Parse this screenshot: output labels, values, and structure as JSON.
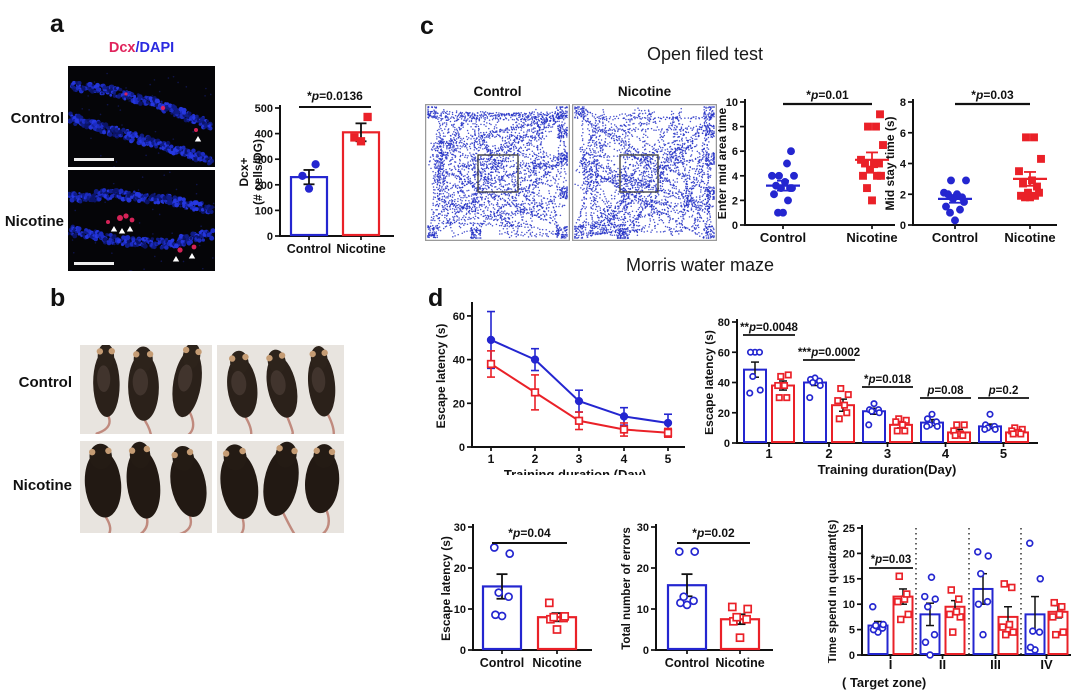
{
  "colors": {
    "blue": "#2426d0",
    "red": "#ea2128",
    "dcx_red": "#e0245c",
    "dapi_blue": "#2a2ae0",
    "trace_blue": "#2330c5",
    "axis": "#111111"
  },
  "panels": {
    "a": {
      "letter": "a",
      "micro_title": {
        "red": "Dcx",
        "blue": "/DAPI"
      },
      "row_labels": [
        "Control",
        "Nicotine"
      ]
    },
    "b": {
      "letter": "b",
      "row_labels": [
        "Control",
        "Nicotine"
      ]
    },
    "c": {
      "letter": "c",
      "title": "Open filed test",
      "trace_labels": [
        "Control",
        "Nicotine"
      ]
    },
    "d": {
      "letter": "d",
      "title": "Morris water maze"
    }
  },
  "chart_data": [
    {
      "id": "dcx-bar",
      "type": "bar-scatter",
      "ylabel_lines": [
        "Dcx+",
        "(# cells/DG)"
      ],
      "ylim": [
        0,
        500
      ],
      "yticks": [
        0,
        100,
        200,
        300,
        400,
        500
      ],
      "categories": [
        "Control",
        "Nicotine"
      ],
      "means": [
        230,
        405
      ],
      "errors": [
        28,
        35
      ],
      "points": [
        [
          185,
          235,
          280
        ],
        [
          370,
          385,
          465
        ]
      ],
      "sig": {
        "label": "*p=0.0136"
      }
    },
    {
      "id": "enter-mid",
      "type": "scatter-groups",
      "ylabel": "Enter mid area time",
      "ylim": [
        0,
        10
      ],
      "yticks": [
        0,
        2,
        4,
        6,
        8,
        10
      ],
      "categories": [
        "Control",
        "Nicotine"
      ],
      "means": [
        3.2,
        5.3
      ],
      "errors": [
        0.4,
        0.6
      ],
      "points": [
        [
          1,
          1,
          2,
          2.5,
          3,
          3,
          3,
          3.2,
          3.5,
          4,
          4,
          4,
          5,
          6
        ],
        [
          2,
          3,
          4,
          4,
          4,
          4.5,
          5,
          5,
          5,
          5.3,
          6.5,
          8,
          8,
          9
        ]
      ],
      "sig": {
        "label": "*p=0.01"
      }
    },
    {
      "id": "mid-stay",
      "type": "scatter-groups",
      "ylabel": "Mid stay time (s)",
      "ylim": [
        0,
        8
      ],
      "yticks": [
        0,
        2,
        4,
        6,
        8
      ],
      "categories": [
        "Control",
        "Nicotine"
      ],
      "means": [
        1.7,
        3.0
      ],
      "errors": [
        0.25,
        0.45
      ],
      "points": [
        [
          0.3,
          0.8,
          1,
          1.2,
          1.5,
          1.7,
          1.8,
          2,
          2,
          2.1,
          2.9,
          2.9
        ],
        [
          1.8,
          1.8,
          1.9,
          1.9,
          2.1,
          2.1,
          2.5,
          2.7,
          2.9,
          3.5,
          4.3,
          5.7,
          5.7
        ]
      ],
      "sig": {
        "label": "*p=0.03"
      }
    },
    {
      "id": "mwm-line",
      "type": "line",
      "ylabel": "Escape latency (s)",
      "xlabel": "Training duration (Day)",
      "x": [
        1,
        2,
        3,
        4,
        5
      ],
      "ylim": [
        0,
        65
      ],
      "yticks": [
        0,
        20,
        40,
        60
      ],
      "series": [
        {
          "name": "Control",
          "color": "blue",
          "y": [
            49,
            40,
            21,
            14,
            11
          ],
          "err": [
            13,
            5,
            5,
            4,
            4
          ]
        },
        {
          "name": "Nicotine",
          "color": "red",
          "y": [
            38,
            25,
            12,
            8,
            6.5
          ],
          "err": [
            6,
            8,
            4,
            3,
            2
          ]
        }
      ]
    },
    {
      "id": "mwm-days-bar",
      "type": "grouped-bar",
      "ylabel": "Escape latency (s)",
      "xlabel": "Training duration(Day)",
      "categories": [
        "1",
        "2",
        "3",
        "4",
        "5"
      ],
      "ylim": [
        0,
        80
      ],
      "yticks": [
        0,
        20,
        40,
        60,
        80
      ],
      "series": [
        {
          "name": "Control",
          "color": "blue",
          "means": [
            48.5,
            40,
            21,
            13.5,
            11
          ],
          "errors": [
            5,
            2,
            2,
            2,
            1.5
          ],
          "points": [
            [
              60,
              60,
              60,
              44,
              35,
              33
            ],
            [
              43,
              42,
              41,
              40,
              38,
              30
            ],
            [
              26,
              22,
              22,
              21,
              20,
              12
            ],
            [
              19,
              16,
              14,
              12,
              11,
              11
            ],
            [
              19,
              12,
              11,
              10,
              9,
              9
            ]
          ]
        },
        {
          "name": "Nicotine",
          "color": "red",
          "means": [
            38,
            25,
            12,
            7,
            7
          ],
          "errors": [
            3,
            4,
            2,
            2,
            1
          ],
          "points": [
            [
              44,
              45,
              38,
              38,
              30,
              30
            ],
            [
              36,
              32,
              28,
              25,
              20,
              16
            ],
            [
              16,
              15,
              14,
              12,
              8,
              8
            ],
            [
              12,
              12,
              8,
              6,
              5,
              5
            ],
            [
              10,
              9,
              8,
              7,
              6,
              6
            ]
          ]
        }
      ],
      "sigs": [
        "**p=0.0048",
        "***p=0.0002",
        "*p=0.018",
        "p=0.08",
        "p=0.2"
      ]
    },
    {
      "id": "probe-latency",
      "type": "bar-scatter",
      "ylabel_lines": [
        "Escape latency (s)"
      ],
      "ylim": [
        0,
        30
      ],
      "yticks": [
        0,
        10,
        20,
        30
      ],
      "categories": [
        "Control",
        "Nicotine"
      ],
      "means": [
        15.5,
        8
      ],
      "errors": [
        3,
        1
      ],
      "points": [
        [
          8.3,
          8.6,
          13,
          14,
          23.5,
          25
        ],
        [
          5,
          7.5,
          7.8,
          8,
          8.2,
          11.5
        ]
      ],
      "sig": {
        "label": "*p=0.04"
      }
    },
    {
      "id": "errors-bar",
      "type": "bar-scatter",
      "ylabel_lines": [
        "Total number of errors"
      ],
      "ylim": [
        0,
        30
      ],
      "yticks": [
        0,
        10,
        20,
        30
      ],
      "categories": [
        "Control",
        "Nicotine"
      ],
      "means": [
        15.8,
        7.5
      ],
      "errors": [
        2.7,
        1.2
      ],
      "points": [
        [
          11,
          11.5,
          12,
          13,
          24,
          24
        ],
        [
          3,
          7,
          7.5,
          8,
          10,
          10.5
        ]
      ],
      "sig": {
        "label": "*p=0.02"
      }
    },
    {
      "id": "quadrant-bar",
      "type": "grouped-bar",
      "ylabel": "Time spend in quadrant(s)",
      "xlabel": "( Target zone)",
      "categories": [
        "I",
        "II",
        "III",
        "IV"
      ],
      "ylim": [
        0,
        25
      ],
      "yticks": [
        0,
        5,
        10,
        15,
        20,
        25
      ],
      "series": [
        {
          "name": "Control",
          "color": "blue",
          "means": [
            5.8,
            8,
            13,
            8
          ],
          "errors": [
            0.8,
            2.2,
            3,
            3.5
          ],
          "points": [
            [
              4.5,
              5,
              5.3,
              5.8,
              6,
              9.5
            ],
            [
              0,
              2.5,
              4,
              9.5,
              11,
              11.5,
              15.3
            ],
            [
              4,
              10,
              10.5,
              16,
              19.5,
              20.3
            ],
            [
              1,
              1.5,
              4.5,
              4.7,
              15,
              22
            ]
          ]
        },
        {
          "name": "Nicotine",
          "color": "red",
          "means": [
            11.5,
            9.5,
            7.5,
            8.5
          ],
          "errors": [
            1.5,
            1.2,
            2,
            1.2
          ],
          "points": [
            [
              7,
              8,
              10.5,
              11,
              12,
              15.5
            ],
            [
              4.5,
              7.5,
              8,
              8.5,
              11,
              12.8
            ],
            [
              4,
              4.5,
              5.5,
              6,
              13.3,
              14
            ],
            [
              4,
              4.5,
              7.5,
              8,
              9.5,
              10.3
            ]
          ]
        }
      ],
      "sig": {
        "label": "*p=0.03"
      }
    }
  ]
}
